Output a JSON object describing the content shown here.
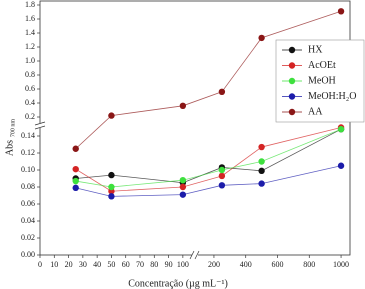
{
  "chart_data": {
    "type": "line",
    "xlabel": "Concentração (µg mL⁻¹)",
    "ylabel": "Abs",
    "ylabel_sub": "700 nm",
    "x": [
      25,
      50,
      100,
      250,
      500,
      1000
    ],
    "series": [
      {
        "name": "HX",
        "color": "#111111",
        "values": [
          0.09,
          0.094,
          0.085,
          0.103,
          0.099,
          0.148
        ]
      },
      {
        "name": "AcOEt",
        "color": "#d42424",
        "values": [
          0.101,
          0.075,
          0.08,
          0.093,
          0.127,
          0.15
        ]
      },
      {
        "name": "MeOH",
        "color": "#3ee03e",
        "values": [
          0.087,
          0.08,
          0.088,
          0.1,
          0.11,
          0.148
        ]
      },
      {
        "name": "MeOH:H₂O",
        "color": "#1c1caa",
        "values": [
          0.079,
          0.069,
          0.071,
          0.082,
          0.084,
          0.105
        ]
      },
      {
        "name": "AA",
        "color": "#8a1616",
        "values": [
          0.125,
          0.22,
          0.36,
          0.56,
          1.33,
          1.71
        ]
      }
    ],
    "x_segments": [
      {
        "xlim": [
          0,
          105
        ],
        "xticks": [
          0,
          10,
          20,
          30,
          40,
          50,
          60,
          70,
          80,
          90,
          100
        ]
      },
      {
        "xlim": [
          150,
          1050
        ],
        "xticks": [
          200,
          400,
          600,
          800,
          1000
        ]
      }
    ],
    "y_segments": [
      {
        "ylim": [
          0,
          0.15
        ],
        "yticks": [
          {
            "value": 0,
            "label": "0.00"
          },
          {
            "value": 0.02,
            "label": "0.02"
          },
          {
            "value": 0.04,
            "label": "0.04"
          },
          {
            "value": 0.06,
            "label": "0.06"
          },
          {
            "value": 0.08,
            "label": "0.08"
          },
          {
            "value": 0.1,
            "label": "0.10"
          },
          {
            "value": 0.12,
            "label": "0.12"
          },
          {
            "value": 0.14,
            "label": "0.14"
          }
        ]
      },
      {
        "ylim": [
          0.1,
          1.85
        ],
        "yticks": [
          0.2,
          0.4,
          0.6,
          0.8,
          {
            "value": 1,
            "label": "1.0"
          },
          1.2,
          1.4,
          1.6,
          1.8
        ]
      }
    ],
    "legend": "upper right"
  }
}
